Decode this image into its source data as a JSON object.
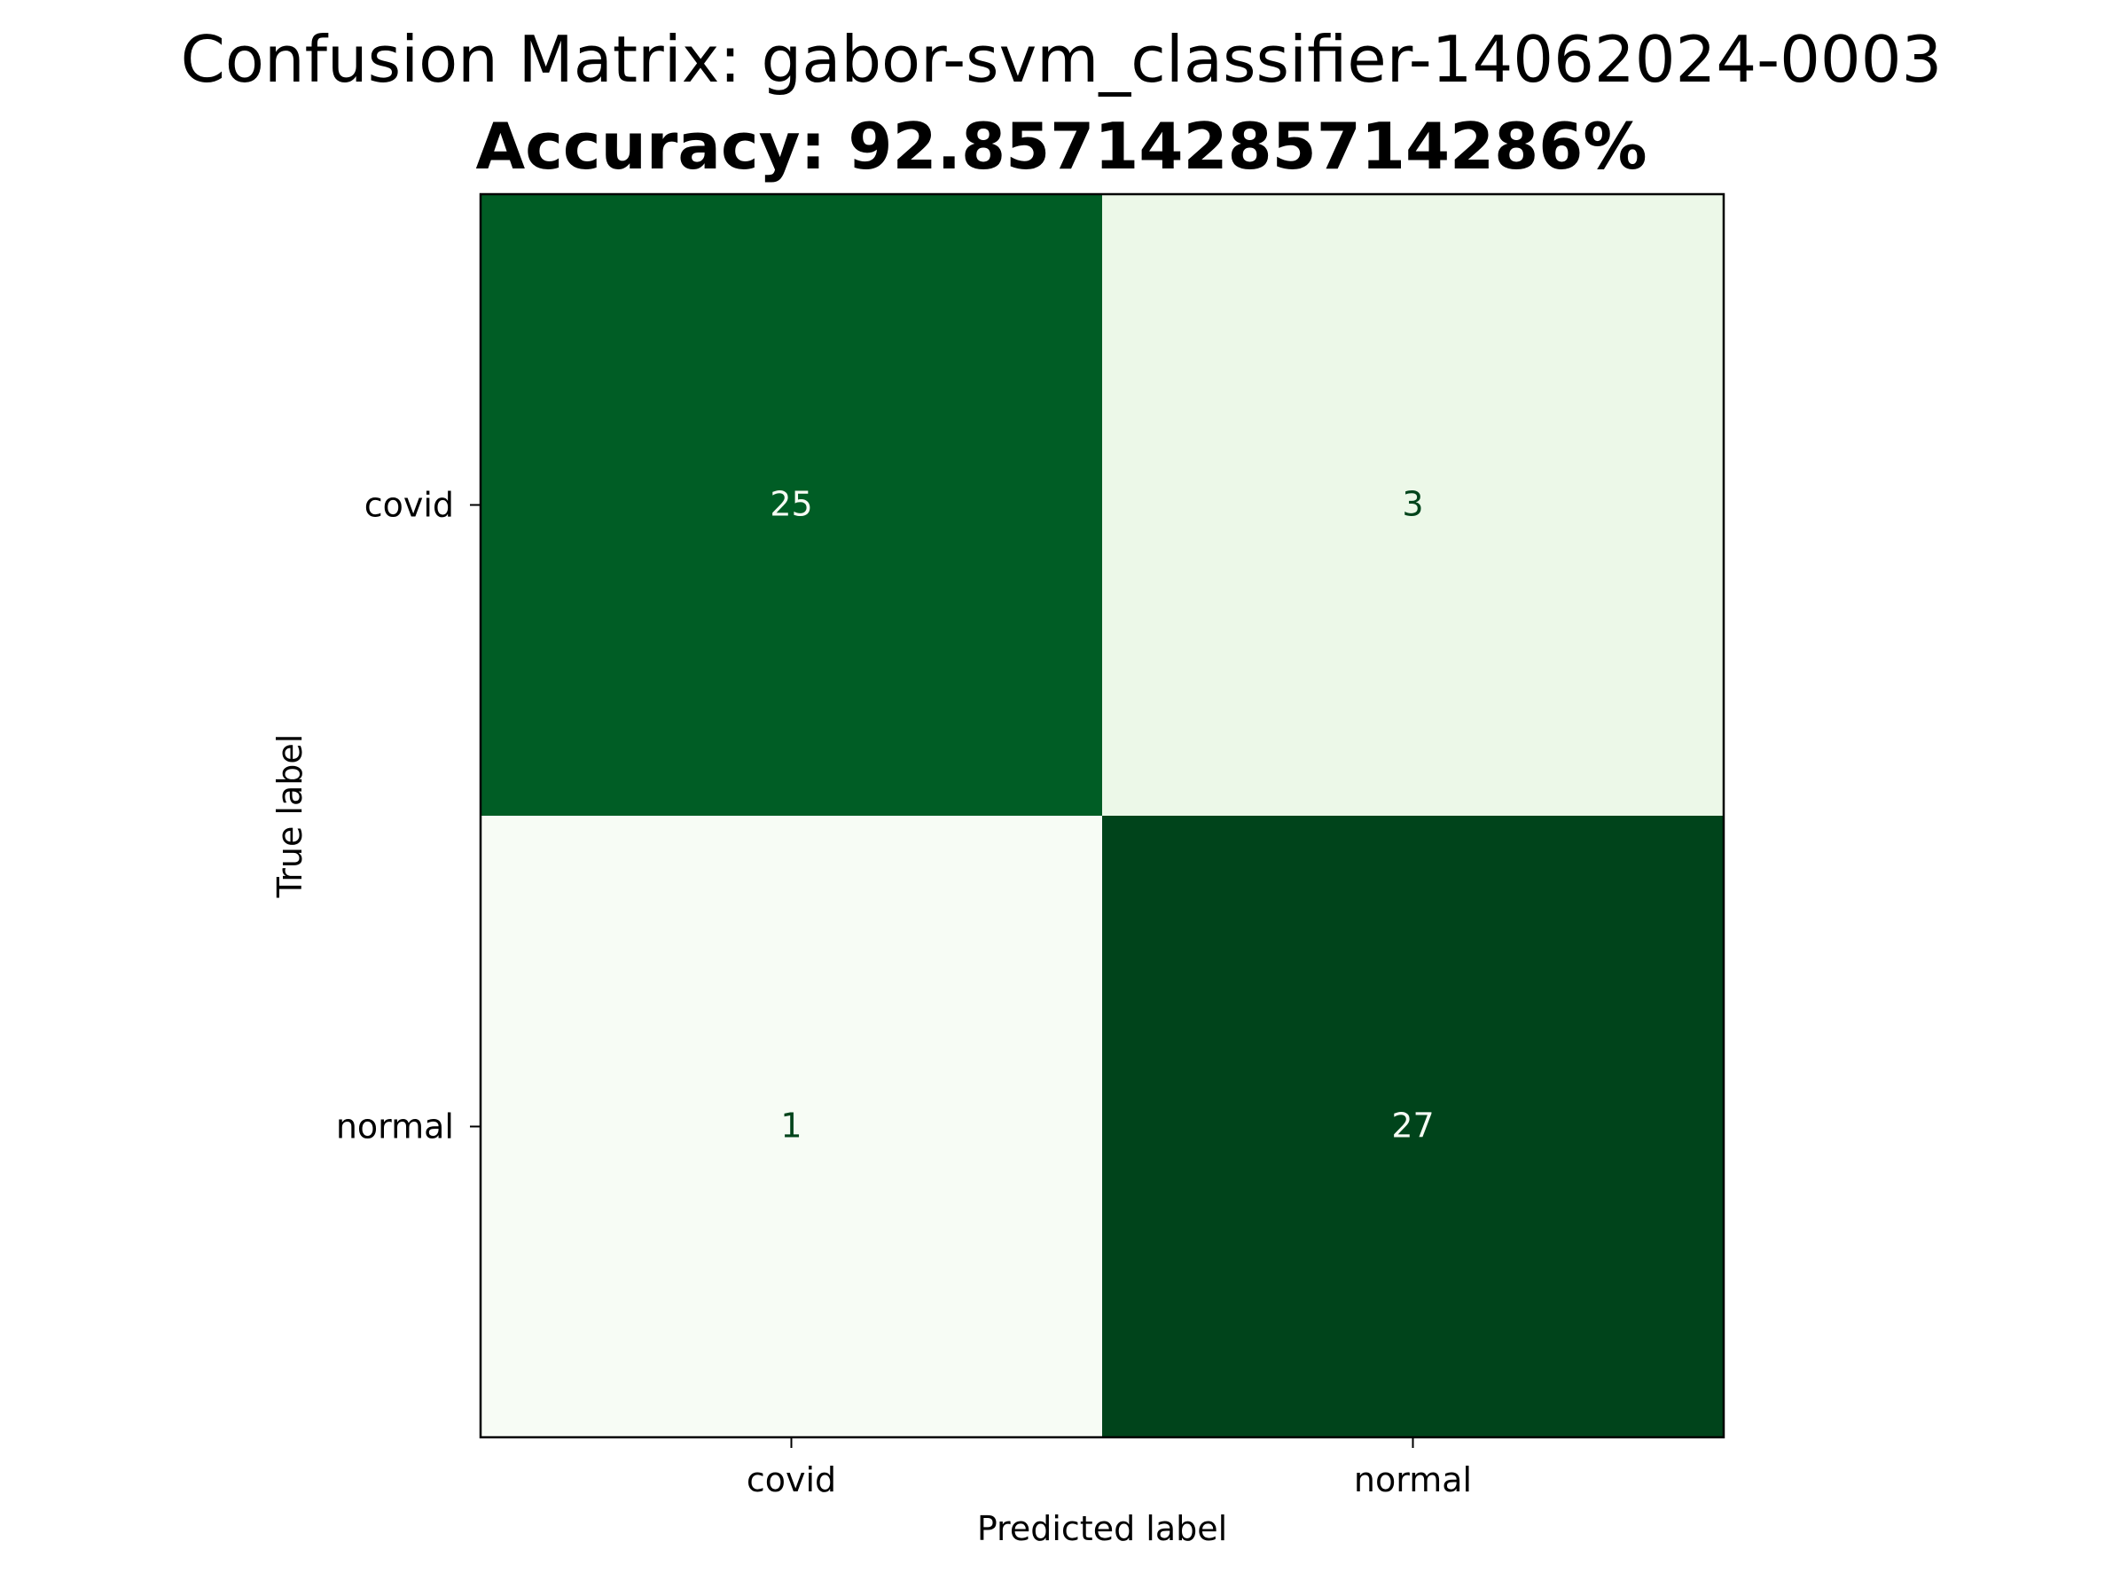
{
  "chart_data": {
    "type": "heatmap",
    "title": "Confusion Matrix: gabor-svm_classifier-14062024-0003",
    "subtitle": "Accuracy: 92.85714285714286%",
    "xlabel": "Predicted label",
    "ylabel": "True label",
    "x_categories": [
      "covid",
      "normal"
    ],
    "y_categories": [
      "covid",
      "normal"
    ],
    "matrix": [
      [
        25,
        3
      ],
      [
        1,
        27
      ]
    ],
    "colormap": "Greens",
    "colorbar": false,
    "grid": false,
    "colors": {
      "cell_25": "#005a24",
      "cell_3": "#e9f6e4",
      "cell_1": "#f5fbf3",
      "cell_27": "#00441b",
      "text_light": "#f7fcf5",
      "text_dark": "#00441b"
    }
  }
}
